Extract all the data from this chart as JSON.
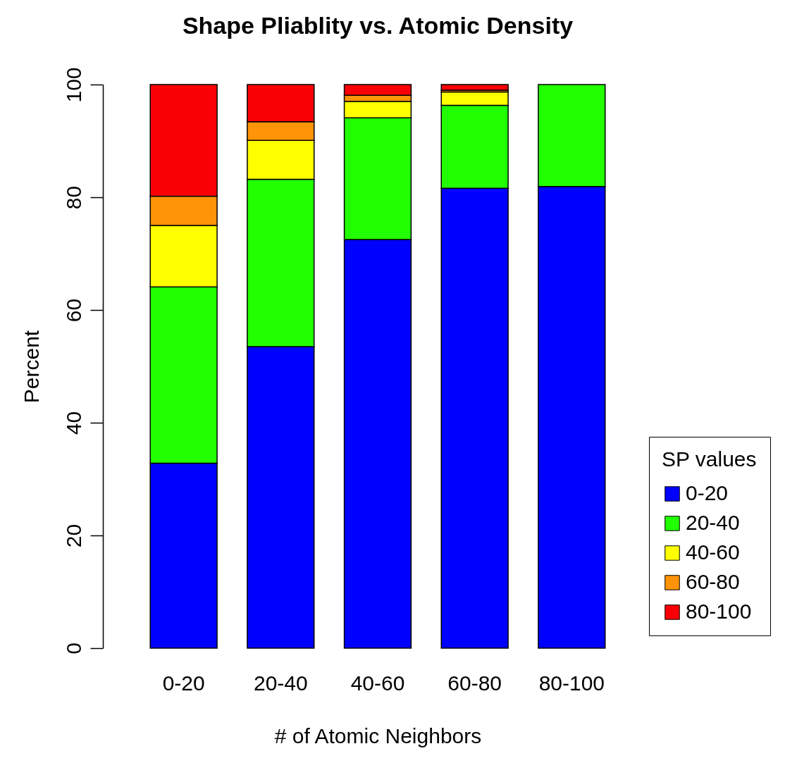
{
  "chart_data": {
    "type": "bar",
    "title": "Shape Pliablity vs. Atomic Density",
    "xlabel": "# of Atomic Neighbors",
    "ylabel": "Percent",
    "legend_title": "SP values",
    "categories": [
      "0-20",
      "20-40",
      "40-60",
      "60-80",
      "80-100"
    ],
    "stacked": true,
    "series": [
      {
        "name": "0-20",
        "color": "#0000ff",
        "values": [
          32.8,
          53.5,
          72.5,
          81.6,
          81.9
        ]
      },
      {
        "name": "20-40",
        "color": "#22ff00",
        "values": [
          31.3,
          29.7,
          21.6,
          14.7,
          18.1
        ]
      },
      {
        "name": "40-60",
        "color": "#ffff00",
        "values": [
          10.9,
          6.9,
          2.9,
          2.4,
          0
        ]
      },
      {
        "name": "60-80",
        "color": "#ff9408",
        "values": [
          5.2,
          3.3,
          1.1,
          0.3,
          0
        ]
      },
      {
        "name": "80-100",
        "color": "#fa0006",
        "values": [
          19.8,
          6.6,
          1.9,
          1.0,
          0
        ]
      }
    ],
    "ylim": [
      0,
      100
    ],
    "yticks": [
      0,
      20,
      40,
      60,
      80,
      100
    ],
    "grid": false,
    "legend": "bottom right"
  }
}
